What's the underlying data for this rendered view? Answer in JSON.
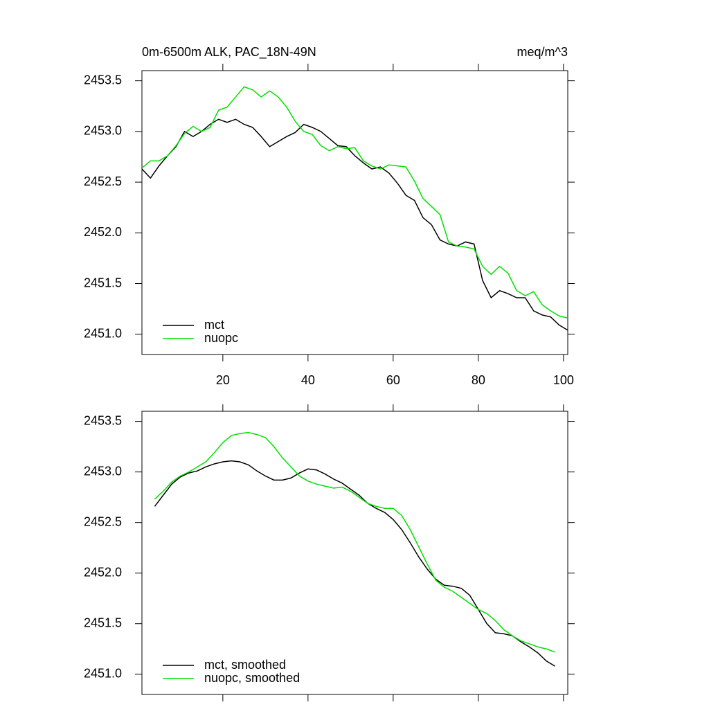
{
  "chart_data": [
    {
      "type": "line",
      "title": "0m-6500m ALK, PAC_18N-49N",
      "subtitle": "meq/m^3",
      "x": [
        1,
        3,
        5,
        7,
        9,
        11,
        13,
        15,
        17,
        19,
        21,
        23,
        25,
        27,
        29,
        31,
        33,
        35,
        37,
        39,
        41,
        43,
        45,
        47,
        49,
        51,
        53,
        55,
        57,
        59,
        61,
        63,
        65,
        67,
        69,
        71,
        73,
        75,
        77,
        79,
        81,
        83,
        85,
        87,
        89,
        91,
        93,
        95,
        97,
        99,
        101
      ],
      "series": [
        {
          "name": "mct",
          "color": "#000000",
          "values": [
            2452.63,
            2452.54,
            2452.66,
            2452.76,
            2452.85,
            2453.0,
            2452.95,
            2453.0,
            2453.07,
            2453.12,
            2453.09,
            2453.12,
            2453.07,
            2453.04,
            2452.95,
            2452.85,
            2452.9,
            2452.95,
            2452.99,
            2453.07,
            2453.04,
            2453.0,
            2452.93,
            2452.86,
            2452.85,
            2452.76,
            2452.69,
            2452.63,
            2452.65,
            2452.59,
            2452.49,
            2452.37,
            2452.32,
            2452.15,
            2452.08,
            2451.93,
            2451.89,
            2451.87,
            2451.91,
            2451.89,
            2451.53,
            2451.36,
            2451.43,
            2451.4,
            2451.36,
            2451.36,
            2451.23,
            2451.19,
            2451.17,
            2451.09,
            2451.04
          ]
        },
        {
          "name": "nuopc",
          "color": "#00e000",
          "values": [
            2452.64,
            2452.71,
            2452.71,
            2452.76,
            2452.86,
            2452.98,
            2453.05,
            2453.0,
            2453.04,
            2453.21,
            2453.24,
            2453.34,
            2453.44,
            2453.41,
            2453.34,
            2453.4,
            2453.34,
            2453.24,
            2453.1,
            2453.0,
            2452.97,
            2452.86,
            2452.81,
            2452.85,
            2452.83,
            2452.84,
            2452.71,
            2452.66,
            2452.63,
            2452.67,
            2452.66,
            2452.65,
            2452.51,
            2452.34,
            2452.26,
            2452.18,
            2451.91,
            2451.87,
            2451.86,
            2451.84,
            2451.67,
            2451.59,
            2451.67,
            2451.6,
            2451.43,
            2451.38,
            2451.42,
            2451.29,
            2451.23,
            2451.18,
            2451.16
          ]
        }
      ],
      "xlim": [
        1,
        101
      ],
      "xticks": [
        20,
        40,
        60,
        80,
        100
      ],
      "show_xtick_labels": true,
      "ylim": [
        2450.8,
        2453.6
      ],
      "yticks": [
        {
          "value": 2451,
          "label": "2451.0"
        },
        2451.5,
        {
          "value": 2452,
          "label": "2452.0"
        },
        2452.5,
        {
          "value": 2453,
          "label": "2453.0"
        },
        2453.5
      ],
      "legend": "lower left"
    },
    {
      "type": "line",
      "x": [
        4,
        6,
        8,
        10,
        12,
        14,
        16,
        18,
        20,
        22,
        24,
        26,
        28,
        30,
        32,
        34,
        36,
        38,
        40,
        42,
        44,
        46,
        48,
        50,
        52,
        54,
        56,
        58,
        60,
        62,
        64,
        66,
        68,
        70,
        72,
        74,
        76,
        78,
        80,
        82,
        84,
        86,
        88,
        90,
        92,
        94,
        96,
        98
      ],
      "series": [
        {
          "name": "mct, smoothed",
          "color": "#000000",
          "values": [
            2452.66,
            2452.77,
            2452.88,
            2452.95,
            2452.99,
            2453.01,
            2453.05,
            2453.08,
            2453.1,
            2453.11,
            2453.1,
            2453.07,
            2453.01,
            2452.96,
            2452.92,
            2452.92,
            2452.94,
            2452.99,
            2453.03,
            2453.02,
            2452.98,
            2452.93,
            2452.89,
            2452.83,
            2452.77,
            2452.69,
            2452.64,
            2452.6,
            2452.53,
            2452.43,
            2452.3,
            2452.16,
            2452.04,
            2451.94,
            2451.88,
            2451.87,
            2451.85,
            2451.78,
            2451.64,
            2451.5,
            2451.41,
            2451.4,
            2451.38,
            2451.32,
            2451.27,
            2451.21,
            2451.13,
            2451.08
          ]
        },
        {
          "name": "nuopc, smoothed",
          "color": "#00e000",
          "values": [
            2452.73,
            2452.81,
            2452.9,
            2452.96,
            2453.0,
            2453.05,
            2453.1,
            2453.19,
            2453.29,
            2453.36,
            2453.38,
            2453.39,
            2453.37,
            2453.34,
            2453.25,
            2453.14,
            2453.05,
            2452.96,
            2452.91,
            2452.88,
            2452.86,
            2452.84,
            2452.85,
            2452.81,
            2452.75,
            2452.69,
            2452.66,
            2452.64,
            2452.64,
            2452.57,
            2452.43,
            2452.26,
            2452.09,
            2451.93,
            2451.86,
            2451.82,
            2451.76,
            2451.7,
            2451.64,
            2451.6,
            2451.53,
            2451.44,
            2451.38,
            2451.33,
            2451.3,
            2451.27,
            2451.25,
            2451.22
          ]
        }
      ],
      "xlim": [
        1,
        101
      ],
      "xticks": [
        20,
        40,
        60,
        80,
        100
      ],
      "show_xtick_labels": false,
      "ylim": [
        2450.8,
        2453.6
      ],
      "yticks": [
        {
          "value": 2451,
          "label": "2451.0"
        },
        2451.5,
        {
          "value": 2452,
          "label": "2452.0"
        },
        2452.5,
        {
          "value": 2453,
          "label": "2453.0"
        },
        2453.5
      ],
      "legend": "lower left"
    }
  ]
}
